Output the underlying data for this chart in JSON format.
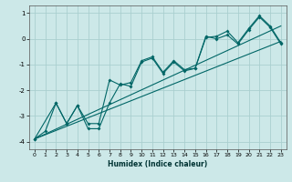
{
  "xlabel": "Humidex (Indice chaleur)",
  "ylabel": "",
  "bg_color": "#cce8e8",
  "grid_color": "#aacfcf",
  "line_color": "#006666",
  "xlim": [
    -0.5,
    23.5
  ],
  "ylim": [
    -4.3,
    1.3
  ],
  "xticks": [
    0,
    1,
    2,
    3,
    4,
    5,
    6,
    7,
    8,
    9,
    10,
    11,
    12,
    13,
    14,
    15,
    16,
    17,
    18,
    19,
    20,
    21,
    22,
    23
  ],
  "yticks": [
    -4,
    -3,
    -2,
    -1,
    0,
    1
  ],
  "line1_x": [
    0,
    1,
    2,
    3,
    4,
    5,
    6,
    7,
    8,
    9,
    10,
    11,
    12,
    13,
    14,
    15,
    16,
    17,
    18,
    19,
    20,
    21,
    22,
    23
  ],
  "line1_y": [
    -3.9,
    -3.6,
    -2.5,
    -3.3,
    -2.6,
    -3.3,
    -3.3,
    -1.6,
    -1.8,
    -1.7,
    -0.85,
    -0.7,
    -1.3,
    -0.85,
    -1.2,
    -1.15,
    0.05,
    0.1,
    0.3,
    -0.15,
    0.4,
    0.9,
    0.5,
    -0.15
  ],
  "line2_x": [
    0,
    2,
    3,
    4,
    5,
    6,
    7,
    8,
    9,
    10,
    11,
    12,
    13,
    14,
    15,
    16,
    17,
    18,
    19,
    20,
    21,
    22,
    23
  ],
  "line2_y": [
    -3.9,
    -2.5,
    -3.3,
    -2.6,
    -3.5,
    -3.5,
    -2.5,
    -1.75,
    -1.85,
    -0.9,
    -0.75,
    -1.35,
    -0.9,
    -1.25,
    -1.15,
    0.1,
    0.0,
    0.15,
    -0.2,
    0.35,
    0.85,
    0.45,
    -0.2
  ],
  "line3_x": [
    0,
    23
  ],
  "line3_y": [
    -3.9,
    -0.1
  ],
  "line4_x": [
    0,
    23
  ],
  "line4_y": [
    -3.9,
    0.5
  ]
}
